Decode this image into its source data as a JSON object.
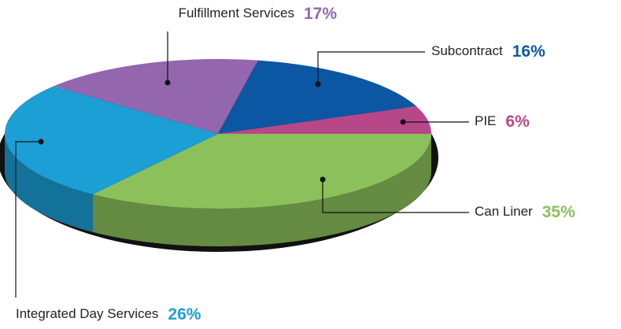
{
  "chart_data": {
    "type": "pie",
    "categories": [
      "Fulfillment Services",
      "Subcontract",
      "PIE",
      "Can Liner",
      "Integrated Day Services"
    ],
    "values": [
      17,
      16,
      6,
      35,
      26
    ],
    "value_labels": [
      "17%",
      "16%",
      "6%",
      "35%",
      "26%"
    ],
    "colors": [
      "#9366ae",
      "#0b57a4",
      "#b8478a",
      "#8cc05a",
      "#1b9fd4"
    ]
  }
}
